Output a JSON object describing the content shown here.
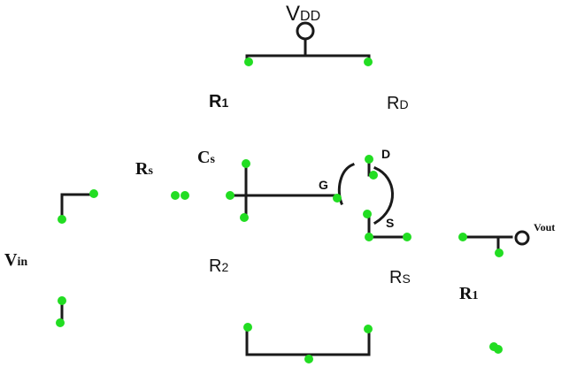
{
  "labels": {
    "vdd_main": "V",
    "vdd_sub": "DD",
    "r1_top_main": "R",
    "r1_top_sub": "1",
    "rd_main": "R",
    "rd_sub": "D",
    "cs_main": "C",
    "cs_sub": "s",
    "rs_left_main": "R",
    "rs_left_sub": "s",
    "gate": "G",
    "drain": "D",
    "source": "S",
    "vout": "Vout",
    "vin_main": "V",
    "vin_sub": "in",
    "r2_main": "R",
    "r2_sub": "2",
    "rs_right_main": "R",
    "rs_right_sub": "S",
    "r1_right_main": "R",
    "r1_right_sub": "1"
  },
  "colors": {
    "wire": "#1a1a1a",
    "node": "#22dd22",
    "background": "#ffffff"
  }
}
